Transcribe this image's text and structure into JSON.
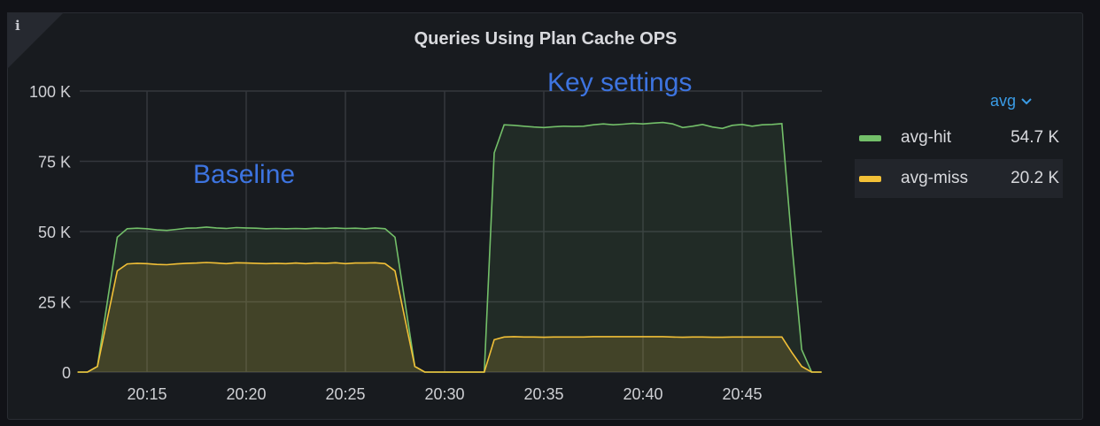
{
  "panel": {
    "title": "Queries Using Plan Cache OPS",
    "info_icon": "info-icon"
  },
  "legend": {
    "header": "avg",
    "items": [
      {
        "name": "avg-hit",
        "value": "54.7 K",
        "color": "#73bf69"
      },
      {
        "name": "avg-miss",
        "value": "20.2 K",
        "color": "#f2c037"
      }
    ]
  },
  "annotations": [
    "Baseline",
    "Key settings"
  ],
  "chart_data": {
    "type": "area",
    "ylim": [
      0,
      100000
    ],
    "yticks": [
      "0",
      "25 K",
      "50 K",
      "75 K",
      "100 K"
    ],
    "ytick_values": [
      0,
      25000,
      50000,
      75000,
      100000
    ],
    "xticks": [
      "20:15",
      "20:20",
      "20:25",
      "20:30",
      "20:35",
      "20:40",
      "20:45"
    ],
    "grid": true,
    "legend_placement": "right",
    "x": [
      "20:11:30",
      "20:12:00",
      "20:12:30",
      "20:13:00",
      "20:13:30",
      "20:14:00",
      "20:14:30",
      "20:15:00",
      "20:15:30",
      "20:16:00",
      "20:16:30",
      "20:17:00",
      "20:17:30",
      "20:18:00",
      "20:18:30",
      "20:19:00",
      "20:19:30",
      "20:20:00",
      "20:20:30",
      "20:21:00",
      "20:21:30",
      "20:22:00",
      "20:22:30",
      "20:23:00",
      "20:23:30",
      "20:24:00",
      "20:24:30",
      "20:25:00",
      "20:25:30",
      "20:26:00",
      "20:26:30",
      "20:27:00",
      "20:27:30",
      "20:28:00",
      "20:28:30",
      "20:29:00",
      "20:29:30",
      "20:30:00",
      "20:30:30",
      "20:31:00",
      "20:31:30",
      "20:32:00",
      "20:32:30",
      "20:33:00",
      "20:33:30",
      "20:34:00",
      "20:34:30",
      "20:35:00",
      "20:35:30",
      "20:36:00",
      "20:36:30",
      "20:37:00",
      "20:37:30",
      "20:38:00",
      "20:38:30",
      "20:39:00",
      "20:39:30",
      "20:40:00",
      "20:40:30",
      "20:41:00",
      "20:41:30",
      "20:42:00",
      "20:42:30",
      "20:43:00",
      "20:43:30",
      "20:44:00",
      "20:44:30",
      "20:45:00",
      "20:45:30",
      "20:46:00",
      "20:46:30",
      "20:47:00",
      "20:47:30",
      "20:48:00",
      "20:48:30",
      "20:49:00"
    ],
    "series": [
      {
        "name": "avg-hit",
        "color": "#73bf69",
        "values": [
          0,
          0,
          2000,
          25000,
          48000,
          51000,
          51200,
          51000,
          50600,
          50400,
          50800,
          51200,
          51300,
          51600,
          51300,
          51100,
          51400,
          51300,
          51200,
          51000,
          51100,
          51000,
          51100,
          51000,
          51200,
          51100,
          51300,
          51100,
          51200,
          51000,
          51300,
          51000,
          48000,
          25000,
          2000,
          0,
          0,
          0,
          0,
          0,
          0,
          0,
          78000,
          88000,
          87800,
          87500,
          87200,
          87000,
          87300,
          87500,
          87400,
          87500,
          88000,
          88300,
          88000,
          88200,
          88500,
          88300,
          88600,
          88800,
          88300,
          87000,
          87500,
          88100,
          87200,
          86700,
          87800,
          88100,
          87500,
          88000,
          88100,
          88400,
          46000,
          8000,
          0,
          0
        ]
      },
      {
        "name": "avg-miss",
        "color": "#f2c037",
        "values": [
          0,
          0,
          2000,
          19000,
          36000,
          38500,
          38700,
          38600,
          38300,
          38200,
          38500,
          38700,
          38800,
          39000,
          38800,
          38600,
          38900,
          38800,
          38700,
          38600,
          38700,
          38600,
          38800,
          38600,
          38800,
          38700,
          38900,
          38600,
          38800,
          38800,
          38900,
          38600,
          36000,
          19000,
          2000,
          0,
          0,
          0,
          0,
          0,
          0,
          0,
          11500,
          12500,
          12600,
          12500,
          12500,
          12400,
          12500,
          12500,
          12500,
          12500,
          12600,
          12600,
          12600,
          12600,
          12600,
          12600,
          12600,
          12600,
          12500,
          12400,
          12500,
          12500,
          12400,
          12400,
          12500,
          12500,
          12500,
          12500,
          12500,
          12500,
          7000,
          2000,
          0,
          0
        ]
      }
    ]
  }
}
